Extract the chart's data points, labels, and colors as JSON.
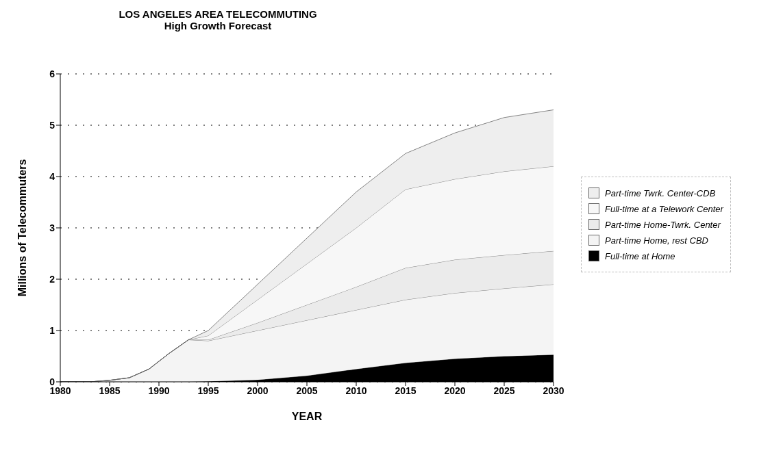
{
  "chart_data": {
    "type": "area",
    "title": "LOS ANGELES AREA TELECOMMUTING",
    "subtitle": "High Growth Forecast",
    "xlabel": "YEAR",
    "ylabel": "Millions of Telecommuters",
    "stacked": true,
    "x": [
      1980,
      1983,
      1985,
      1987,
      1989,
      1991,
      1993,
      1995,
      2000,
      2005,
      2010,
      2015,
      2020,
      2025,
      2030
    ],
    "series": [
      {
        "name": "Full-time at Home",
        "color": "#000000",
        "values": [
          0,
          0,
          0,
          0,
          0,
          0,
          0,
          0.01,
          0.04,
          0.12,
          0.25,
          0.37,
          0.45,
          0.5,
          0.53
        ]
      },
      {
        "name": "Part-time Home, rest CBD",
        "color": "#f4f4f4",
        "values": [
          0,
          0,
          0.03,
          0.08,
          0.25,
          0.55,
          0.82,
          0.79,
          0.96,
          1.08,
          1.15,
          1.23,
          1.28,
          1.32,
          1.37
        ]
      },
      {
        "name": "Part-time Home-Twrk. Center",
        "color": "#ebebeb",
        "values": [
          0,
          0,
          0,
          0,
          0,
          0,
          0,
          0.02,
          0.15,
          0.3,
          0.45,
          0.62,
          0.65,
          0.65,
          0.65
        ]
      },
      {
        "name": "Full-time at a Telework Center",
        "color": "#f7f7f7",
        "values": [
          0,
          0,
          0,
          0,
          0,
          0,
          0,
          0.08,
          0.45,
          0.8,
          1.15,
          1.53,
          1.57,
          1.63,
          1.65
        ]
      },
      {
        "name": "Part-time Twrk. Center-CDB",
        "color": "#eeeeee",
        "values": [
          0,
          0,
          0,
          0,
          0,
          0,
          0,
          0.1,
          0.3,
          0.5,
          0.7,
          0.7,
          0.9,
          1.05,
          1.1
        ]
      }
    ],
    "xlim": [
      1980,
      2030
    ],
    "xticks": [
      1980,
      1985,
      1990,
      1995,
      2000,
      2005,
      2010,
      2015,
      2020,
      2025,
      2030
    ],
    "ylim": [
      0,
      6
    ],
    "yticks": [
      0,
      1,
      2,
      3,
      4,
      5,
      6
    ],
    "grid": "y",
    "legend": "right"
  }
}
